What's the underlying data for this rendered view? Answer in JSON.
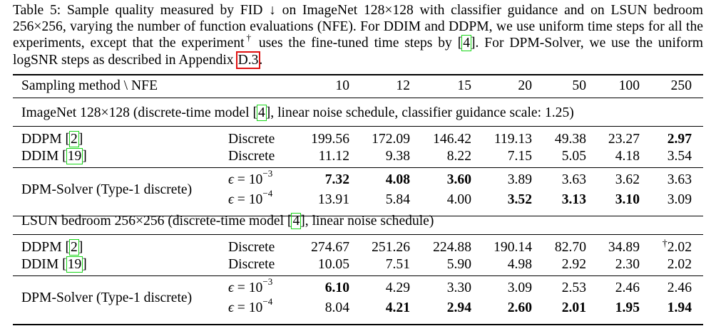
{
  "caption": {
    "p1": "Table 5: Sample quality measured by FID ↓ on ImageNet 128×128 with classifier guidance and on LSUN bedroom 256×256, varying the number of function evaluations (NFE). For DDIM and DDPM, we use uniform time steps for all the experiments, except that the experiment",
    "dagger": "†",
    "p2": " uses the fine-tuned time steps by [",
    "cite4": "4",
    "p3": "]. For DPM-Solver, we use the uniform logSNR steps as described in Appendix ",
    "appendix": "D.3",
    "p4": "."
  },
  "header": {
    "method": "Sampling method \\ NFE",
    "nfe": [
      "10",
      "12",
      "15",
      "20",
      "50",
      "100",
      "250"
    ]
  },
  "sections": [
    {
      "title_pre": "ImageNet 128×128 (discrete-time model [",
      "title_cite": "4",
      "title_post": "], linear noise schedule, classifier guidance scale: 1.25)",
      "baselines": [
        {
          "name": "DDPM [",
          "cite": "2",
          "close": "]",
          "type": "Discrete",
          "values": [
            "199.56",
            "172.09",
            "146.42",
            "119.13",
            "49.38",
            "23.27",
            "2.97"
          ],
          "bold": [
            false,
            false,
            false,
            false,
            false,
            false,
            true
          ]
        },
        {
          "name": "DDIM [",
          "cite": "19",
          "close": "]",
          "type": "Discrete",
          "values": [
            "11.12",
            "9.38",
            "8.22",
            "7.15",
            "5.05",
            "4.18",
            "3.54"
          ],
          "bold": [
            false,
            false,
            false,
            false,
            false,
            false,
            false
          ]
        }
      ],
      "solver": {
        "name": "DPM-Solver (Type-1 discrete)",
        "rows": [
          {
            "eps": "ϵ = 10",
            "exp": "−3",
            "values": [
              "7.32",
              "4.08",
              "3.60",
              "3.89",
              "3.63",
              "3.62",
              "3.63"
            ],
            "bold": [
              true,
              true,
              true,
              false,
              false,
              false,
              false
            ]
          },
          {
            "eps": "ϵ = 10",
            "exp": "−4",
            "values": [
              "13.91",
              "5.84",
              "4.00",
              "3.52",
              "3.13",
              "3.10",
              "3.09"
            ],
            "bold": [
              false,
              false,
              false,
              true,
              true,
              true,
              false
            ]
          }
        ]
      }
    },
    {
      "title_pre": "LSUN bedroom 256×256 (discrete-time model [",
      "title_cite": "4",
      "title_post": "], linear noise schedule)",
      "baselines": [
        {
          "name": "DDPM [",
          "cite": "2",
          "close": "]",
          "type": "Discrete",
          "values": [
            "274.67",
            "251.26",
            "224.88",
            "190.14",
            "82.70",
            "34.89",
            "†2.02"
          ],
          "bold": [
            false,
            false,
            false,
            false,
            false,
            false,
            false
          ]
        },
        {
          "name": "DDIM [",
          "cite": "19",
          "close": "]",
          "type": "Discrete",
          "values": [
            "10.05",
            "7.51",
            "5.90",
            "4.98",
            "2.92",
            "2.30",
            "2.02"
          ],
          "bold": [
            false,
            false,
            false,
            false,
            false,
            false,
            false
          ]
        }
      ],
      "solver": {
        "name": "DPM-Solver (Type-1 discrete)",
        "rows": [
          {
            "eps": "ϵ = 10",
            "exp": "−3",
            "values": [
              "6.10",
              "4.29",
              "3.30",
              "3.09",
              "2.53",
              "2.46",
              "2.46"
            ],
            "bold": [
              true,
              false,
              false,
              false,
              false,
              false,
              false
            ]
          },
          {
            "eps": "ϵ = 10",
            "exp": "−4",
            "values": [
              "8.04",
              "4.21",
              "2.94",
              "2.60",
              "2.01",
              "1.95",
              "1.94"
            ],
            "bold": [
              false,
              true,
              true,
              true,
              true,
              true,
              true
            ]
          }
        ]
      }
    }
  ],
  "colors": {
    "citation_box": "#19d619",
    "appendix_box": "#e01010"
  }
}
